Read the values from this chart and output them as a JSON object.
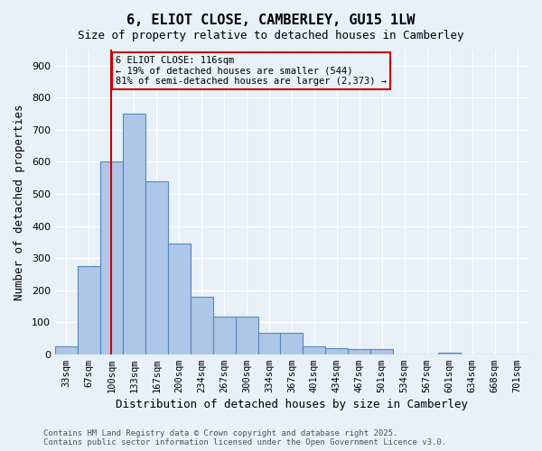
{
  "title": "6, ELIOT CLOSE, CAMBERLEY, GU15 1LW",
  "subtitle": "Size of property relative to detached houses in Camberley",
  "xlabel": "Distribution of detached houses by size in Camberley",
  "ylabel": "Number of detached properties",
  "bar_values": [
    25,
    275,
    600,
    750,
    540,
    345,
    180,
    118,
    118,
    68,
    68,
    25,
    20,
    15,
    15,
    0,
    0,
    5,
    0,
    0,
    0
  ],
  "categories": [
    "33sqm",
    "67sqm",
    "100sqm",
    "133sqm",
    "167sqm",
    "200sqm",
    "234sqm",
    "267sqm",
    "300sqm",
    "334sqm",
    "367sqm",
    "401sqm",
    "434sqm",
    "467sqm",
    "501sqm",
    "534sqm",
    "567sqm",
    "601sqm",
    "634sqm",
    "668sqm",
    "701sqm"
  ],
  "bar_color": "#aec6e8",
  "bar_edge_color": "#5588bb",
  "bg_color": "#e8f0f8",
  "grid_color": "#ffffff",
  "vline_x": 2,
  "vline_color": "#cc0000",
  "annotation_text": "6 ELIOT CLOSE: 116sqm\n← 19% of detached houses are smaller (544)\n81% of semi-detached houses are larger (2,373) →",
  "annotation_box_color": "#cc0000",
  "ylim": [
    0,
    950
  ],
  "yticks": [
    0,
    100,
    200,
    300,
    400,
    500,
    600,
    700,
    800,
    900
  ],
  "footer_line1": "Contains HM Land Registry data © Crown copyright and database right 2025.",
  "footer_line2": "Contains public sector information licensed under the Open Government Licence v3.0."
}
